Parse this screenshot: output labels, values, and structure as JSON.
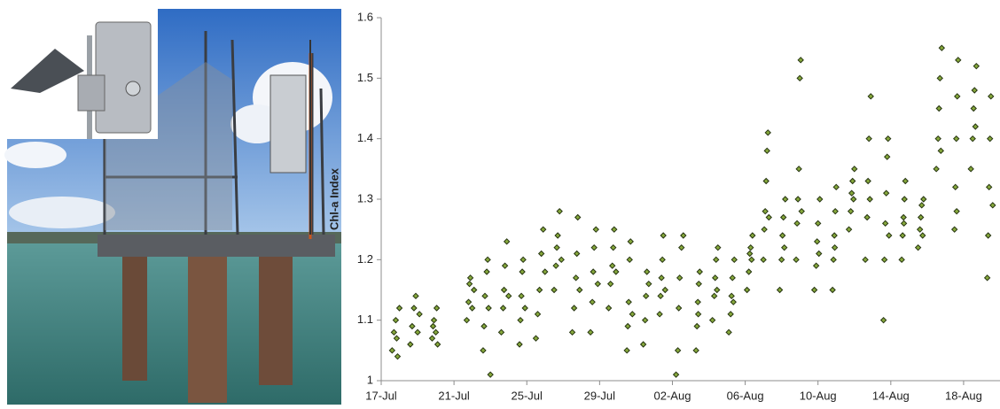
{
  "chart_data": {
    "type": "scatter",
    "y_label": "Chl-a Index",
    "color": "#86a83c",
    "edge_color": "#253310",
    "xlim": [
      0,
      34
    ],
    "ylim": [
      1,
      1.6
    ],
    "xticks": [
      {
        "value": 0,
        "label": "17-Jul"
      },
      {
        "value": 4,
        "label": "21-Jul"
      },
      {
        "value": 8,
        "label": "25-Jul"
      },
      {
        "value": 12,
        "label": "29-Jul"
      },
      {
        "value": 16,
        "label": "02-Aug"
      },
      {
        "value": 20,
        "label": "06-Aug"
      },
      {
        "value": 24,
        "label": "10-Aug"
      },
      {
        "value": 28,
        "label": "14-Aug"
      },
      {
        "value": 32,
        "label": "18-Aug"
      }
    ],
    "yticks": [
      1,
      1.1,
      1.2,
      1.3,
      1.4,
      1.5,
      1.6
    ],
    "x": [
      0.6,
      0.7,
      0.8,
      0.85,
      0.9,
      1.0,
      1.6,
      1.7,
      1.8,
      1.9,
      2.0,
      2.1,
      2.8,
      2.85,
      2.9,
      3.0,
      3.05,
      3.1,
      4.7,
      4.8,
      4.85,
      4.9,
      5.0,
      5.1,
      5.6,
      5.65,
      5.7,
      5.8,
      5.85,
      5.9,
      6.0,
      6.6,
      6.7,
      6.75,
      6.8,
      6.9,
      7.0,
      7.6,
      7.65,
      7.7,
      7.75,
      7.8,
      7.9,
      8.5,
      8.6,
      8.7,
      8.8,
      8.9,
      9.0,
      9.5,
      9.6,
      9.65,
      9.7,
      9.8,
      9.9,
      10.5,
      10.6,
      10.7,
      10.75,
      10.8,
      10.9,
      11.5,
      11.6,
      11.65,
      11.7,
      11.8,
      11.9,
      12.5,
      12.6,
      12.7,
      12.75,
      12.8,
      12.9,
      13.5,
      13.55,
      13.6,
      13.65,
      13.7,
      13.8,
      14.4,
      14.5,
      14.55,
      14.6,
      14.7,
      15.3,
      15.35,
      15.4,
      15.45,
      15.5,
      15.6,
      16.2,
      16.3,
      16.35,
      16.4,
      16.5,
      16.6,
      17.3,
      17.35,
      17.4,
      17.45,
      17.5,
      17.42,
      18.2,
      18.3,
      18.35,
      18.4,
      18.5,
      18.45,
      19.1,
      19.2,
      19.25,
      19.3,
      19.4,
      19.35,
      20.1,
      20.2,
      20.25,
      20.3,
      20.4,
      20.35,
      21.0,
      21.05,
      21.1,
      21.15,
      21.2,
      21.25,
      21.3,
      21.9,
      22.0,
      22.05,
      22.1,
      22.2,
      22.15,
      22.8,
      22.85,
      22.9,
      22.95,
      23.0,
      23.05,
      23.1,
      23.8,
      23.9,
      23.95,
      24.0,
      24.1,
      24.05,
      24.8,
      24.85,
      24.9,
      24.95,
      25.0,
      24.92,
      25.7,
      25.8,
      25.85,
      25.9,
      26.0,
      25.95,
      26.6,
      26.7,
      26.75,
      26.8,
      26.9,
      26.85,
      27.6,
      27.65,
      27.7,
      27.75,
      27.8,
      27.85,
      27.9,
      28.6,
      28.65,
      28.7,
      28.75,
      28.8,
      28.72,
      29.5,
      29.6,
      29.65,
      29.7,
      29.8,
      29.75,
      30.5,
      30.6,
      30.65,
      30.7,
      30.8,
      30.75,
      31.5,
      31.55,
      31.6,
      31.65,
      31.7,
      31.62,
      32.4,
      32.5,
      32.55,
      32.6,
      32.7,
      32.65,
      33.3,
      33.35,
      33.4,
      33.45,
      33.5,
      33.6
    ],
    "values": [
      1.05,
      1.08,
      1.1,
      1.07,
      1.04,
      1.12,
      1.06,
      1.09,
      1.12,
      1.14,
      1.08,
      1.11,
      1.07,
      1.09,
      1.1,
      1.08,
      1.12,
      1.06,
      1.1,
      1.13,
      1.16,
      1.17,
      1.12,
      1.15,
      1.05,
      1.09,
      1.14,
      1.18,
      1.2,
      1.12,
      1.01,
      1.08,
      1.12,
      1.15,
      1.19,
      1.23,
      1.14,
      1.06,
      1.1,
      1.14,
      1.18,
      1.2,
      1.12,
      1.07,
      1.11,
      1.15,
      1.21,
      1.25,
      1.18,
      1.15,
      1.19,
      1.22,
      1.24,
      1.28,
      1.2,
      1.08,
      1.12,
      1.17,
      1.21,
      1.27,
      1.15,
      1.08,
      1.13,
      1.18,
      1.22,
      1.25,
      1.16,
      1.12,
      1.16,
      1.19,
      1.22,
      1.25,
      1.18,
      1.05,
      1.09,
      1.13,
      1.2,
      1.23,
      1.11,
      1.06,
      1.1,
      1.14,
      1.18,
      1.16,
      1.11,
      1.14,
      1.17,
      1.2,
      1.24,
      1.15,
      1.01,
      1.05,
      1.12,
      1.17,
      1.22,
      1.24,
      1.05,
      1.09,
      1.13,
      1.16,
      1.18,
      1.11,
      1.1,
      1.14,
      1.17,
      1.2,
      1.22,
      1.15,
      1.08,
      1.11,
      1.14,
      1.17,
      1.2,
      1.13,
      1.15,
      1.18,
      1.21,
      1.22,
      1.24,
      1.2,
      1.2,
      1.25,
      1.28,
      1.33,
      1.38,
      1.41,
      1.27,
      1.15,
      1.2,
      1.24,
      1.27,
      1.3,
      1.22,
      1.2,
      1.26,
      1.3,
      1.35,
      1.5,
      1.53,
      1.28,
      1.15,
      1.19,
      1.23,
      1.26,
      1.3,
      1.21,
      1.15,
      1.2,
      1.24,
      1.28,
      1.32,
      1.22,
      1.25,
      1.28,
      1.31,
      1.33,
      1.35,
      1.3,
      1.2,
      1.27,
      1.33,
      1.4,
      1.47,
      1.3,
      1.1,
      1.2,
      1.26,
      1.31,
      1.37,
      1.4,
      1.24,
      1.2,
      1.24,
      1.27,
      1.3,
      1.33,
      1.26,
      1.22,
      1.25,
      1.27,
      1.29,
      1.3,
      1.24,
      1.35,
      1.4,
      1.45,
      1.5,
      1.55,
      1.38,
      1.25,
      1.32,
      1.4,
      1.47,
      1.53,
      1.28,
      1.35,
      1.4,
      1.45,
      1.48,
      1.52,
      1.42,
      1.17,
      1.24,
      1.32,
      1.4,
      1.47,
      1.29
    ]
  }
}
